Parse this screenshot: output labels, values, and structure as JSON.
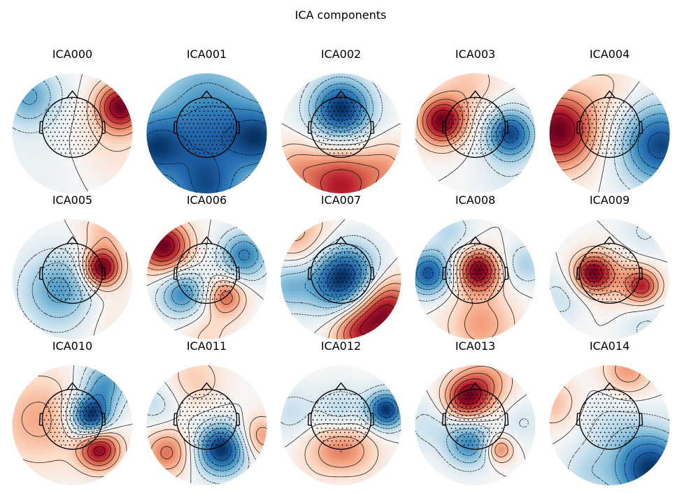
{
  "chart_data": {
    "type": "topomap-grid",
    "title": "ICA components",
    "rows": 3,
    "cols": 5,
    "colormap": [
      "#053061",
      "#2166ac",
      "#4393c3",
      "#92c5de",
      "#d1e5f0",
      "#f7f7f7",
      "#fddbc7",
      "#f4a582",
      "#d6604d",
      "#b2182b",
      "#67001f"
    ],
    "components": [
      {
        "name": "ICA000",
        "sources": [
          {
            "x": -0.72,
            "y": 0.62,
            "s": 0.36,
            "a": -0.7
          },
          {
            "x": 0.8,
            "y": 0.45,
            "s": 0.28,
            "a": 1.25
          },
          {
            "x": 0.65,
            "y": -0.2,
            "s": 0.5,
            "a": 0.2
          },
          {
            "x": -0.4,
            "y": -0.6,
            "s": 0.6,
            "a": -0.1
          }
        ]
      },
      {
        "name": "ICA001",
        "sources": [
          {
            "x": 0.0,
            "y": 0.55,
            "s": 0.7,
            "a": -0.55
          },
          {
            "x": -0.92,
            "y": -0.25,
            "s": 0.4,
            "a": -0.85
          },
          {
            "x": 0.92,
            "y": -0.1,
            "s": 0.4,
            "a": -0.85
          },
          {
            "x": 0.0,
            "y": -0.95,
            "s": 0.45,
            "a": -0.85
          },
          {
            "x": 0.0,
            "y": -0.05,
            "s": 0.4,
            "a": -0.25
          }
        ]
      },
      {
        "name": "ICA002",
        "sources": [
          {
            "x": 0.0,
            "y": 0.4,
            "s": 0.36,
            "a": -1.2
          },
          {
            "x": 0.0,
            "y": -0.88,
            "s": 0.45,
            "a": 0.95
          },
          {
            "x": -0.8,
            "y": -0.55,
            "s": 0.3,
            "a": 0.35
          },
          {
            "x": 0.8,
            "y": -0.55,
            "s": 0.3,
            "a": 0.35
          }
        ]
      },
      {
        "name": "ICA003",
        "sources": [
          {
            "x": -0.55,
            "y": 0.2,
            "s": 0.28,
            "a": 1.15
          },
          {
            "x": 0.58,
            "y": 0.0,
            "s": 0.28,
            "a": -1.05
          },
          {
            "x": -0.1,
            "y": 0.85,
            "s": 0.35,
            "a": 0.3
          },
          {
            "x": 0.55,
            "y": -0.65,
            "s": 0.4,
            "a": -0.15
          }
        ]
      },
      {
        "name": "ICA004",
        "sources": [
          {
            "x": -0.85,
            "y": 0.05,
            "s": 0.45,
            "a": 1.25
          },
          {
            "x": 0.85,
            "y": -0.2,
            "s": 0.48,
            "a": -1.15
          },
          {
            "x": 0.0,
            "y": 0.8,
            "s": 0.35,
            "a": 0.2
          }
        ]
      },
      {
        "name": "ICA005",
        "sources": [
          {
            "x": 0.48,
            "y": 0.18,
            "s": 0.22,
            "a": 1.25
          },
          {
            "x": -0.2,
            "y": -0.18,
            "s": 0.45,
            "a": -0.65
          },
          {
            "x": 0.55,
            "y": 0.8,
            "s": 0.3,
            "a": 0.35
          },
          {
            "x": 0.6,
            "y": -0.6,
            "s": 0.35,
            "a": 0.15
          }
        ]
      },
      {
        "name": "ICA006",
        "sources": [
          {
            "x": -0.72,
            "y": 0.55,
            "s": 0.3,
            "a": 1.3
          },
          {
            "x": 0.62,
            "y": 0.4,
            "s": 0.28,
            "a": -0.9
          },
          {
            "x": -0.4,
            "y": -0.25,
            "s": 0.28,
            "a": -0.85
          },
          {
            "x": 0.32,
            "y": -0.28,
            "s": 0.22,
            "a": 0.75
          },
          {
            "x": 0.0,
            "y": -0.9,
            "s": 0.35,
            "a": 0.25
          }
        ]
      },
      {
        "name": "ICA007",
        "sources": [
          {
            "x": 0.05,
            "y": 0.0,
            "s": 0.4,
            "a": -1.1
          },
          {
            "x": -0.7,
            "y": 0.7,
            "s": 0.4,
            "a": 0.4
          },
          {
            "x": 0.72,
            "y": -0.5,
            "s": 0.38,
            "a": 0.95
          },
          {
            "x": 0.25,
            "y": -0.9,
            "s": 0.3,
            "a": 0.6
          },
          {
            "x": -0.9,
            "y": -0.1,
            "s": 0.3,
            "a": -0.45
          }
        ]
      },
      {
        "name": "ICA008",
        "sources": [
          {
            "x": 0.05,
            "y": 0.15,
            "s": 0.24,
            "a": 1.05
          },
          {
            "x": -0.78,
            "y": 0.1,
            "s": 0.26,
            "a": -0.95
          },
          {
            "x": 0.85,
            "y": 0.25,
            "s": 0.25,
            "a": -0.35
          },
          {
            "x": 0.1,
            "y": -0.75,
            "s": 0.4,
            "a": 0.45
          },
          {
            "x": -0.4,
            "y": 0.8,
            "s": 0.25,
            "a": -0.3
          }
        ]
      },
      {
        "name": "ICA009",
        "sources": [
          {
            "x": -0.3,
            "y": 0.1,
            "s": 0.22,
            "a": 1.35
          },
          {
            "x": 0.55,
            "y": -0.12,
            "s": 0.2,
            "a": 1.1
          },
          {
            "x": 0.1,
            "y": 0.05,
            "s": 0.35,
            "a": 0.45
          },
          {
            "x": -0.8,
            "y": -0.3,
            "s": 0.3,
            "a": -0.35
          },
          {
            "x": 0.6,
            "y": -0.8,
            "s": 0.3,
            "a": -0.3
          },
          {
            "x": 0.55,
            "y": 0.75,
            "s": 0.3,
            "a": -0.3
          }
        ]
      },
      {
        "name": "ICA010",
        "sources": [
          {
            "x": 0.3,
            "y": 0.15,
            "s": 0.24,
            "a": -1.15
          },
          {
            "x": 0.45,
            "y": -0.4,
            "s": 0.24,
            "a": 0.95
          },
          {
            "x": -0.55,
            "y": 0.1,
            "s": 0.55,
            "a": 0.4
          },
          {
            "x": 0.55,
            "y": 0.7,
            "s": 0.28,
            "a": -0.6
          }
        ]
      },
      {
        "name": "ICA011",
        "sources": [
          {
            "x": 0.25,
            "y": -0.4,
            "s": 0.3,
            "a": -1.2
          },
          {
            "x": -0.65,
            "y": -0.45,
            "s": 0.28,
            "a": 0.65
          },
          {
            "x": 0.88,
            "y": -0.2,
            "s": 0.25,
            "a": 0.55
          },
          {
            "x": -0.2,
            "y": 0.75,
            "s": 0.35,
            "a": 0.3
          },
          {
            "x": -0.85,
            "y": 0.35,
            "s": 0.28,
            "a": -0.3
          }
        ]
      },
      {
        "name": "ICA012",
        "sources": [
          {
            "x": 0.0,
            "y": -0.4,
            "s": 0.4,
            "a": 0.6
          },
          {
            "x": 0.75,
            "y": 0.25,
            "s": 0.22,
            "a": -1.05
          },
          {
            "x": 0.0,
            "y": 0.2,
            "s": 0.3,
            "a": -0.4
          },
          {
            "x": -0.8,
            "y": 0.2,
            "s": 0.3,
            "a": -0.25
          },
          {
            "x": 0.0,
            "y": -0.95,
            "s": 0.3,
            "a": -0.15
          }
        ]
      },
      {
        "name": "ICA013",
        "sources": [
          {
            "x": -0.15,
            "y": 0.45,
            "s": 0.26,
            "a": 1.25
          },
          {
            "x": 0.2,
            "y": 0.72,
            "s": 0.3,
            "a": 0.6
          },
          {
            "x": -0.1,
            "y": -0.3,
            "s": 0.28,
            "a": -0.95
          },
          {
            "x": 0.4,
            "y": -0.4,
            "s": 0.16,
            "a": 0.85
          },
          {
            "x": -0.8,
            "y": 0.0,
            "s": 0.3,
            "a": -0.3
          },
          {
            "x": 0.8,
            "y": 0.05,
            "s": 0.25,
            "a": -0.25
          }
        ]
      },
      {
        "name": "ICA014",
        "sources": [
          {
            "x": 0.7,
            "y": -0.75,
            "s": 0.45,
            "a": -1.1
          },
          {
            "x": 0.3,
            "y": 0.9,
            "s": 0.3,
            "a": 0.5
          },
          {
            "x": -0.9,
            "y": 0.35,
            "s": 0.3,
            "a": 0.35
          },
          {
            "x": 0.0,
            "y": 0.0,
            "s": 0.45,
            "a": -0.2
          },
          {
            "x": -0.4,
            "y": -0.8,
            "s": 0.3,
            "a": -0.25
          }
        ]
      }
    ]
  }
}
